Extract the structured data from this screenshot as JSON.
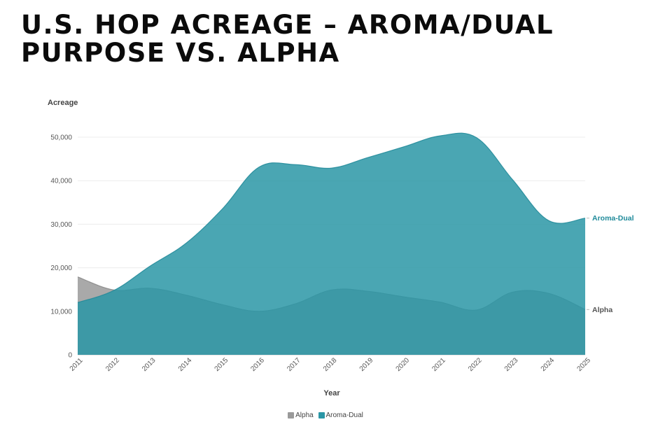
{
  "title": "U.S. HOP ACREAGE – AROMA/DUAL PURPOSE VS. ALPHA",
  "chart_data": {
    "type": "area",
    "title": "U.S. HOP ACREAGE – AROMA/DUAL PURPOSE VS. ALPHA",
    "xlabel": "Year",
    "ylabel": "Acreage",
    "x": [
      "2011",
      "2012",
      "2013",
      "2014",
      "2015",
      "2016",
      "2017",
      "2018",
      "2019",
      "2020",
      "2021",
      "2022",
      "2023",
      "2024",
      "2025"
    ],
    "yticks": [
      "0",
      "10,000",
      "20,000",
      "30,000",
      "40,000",
      "50,000"
    ],
    "ylim": [
      0,
      50000
    ],
    "grid": true,
    "legend_position": "bottom-center",
    "series": [
      {
        "name": "Alpha",
        "color": "#9a9a9a",
        "values": [
          17900,
          14900,
          15300,
          13700,
          11500,
          10000,
          11700,
          14900,
          14600,
          13300,
          12100,
          10300,
          14400,
          14100,
          10400
        ]
      },
      {
        "name": "Aroma-Dual",
        "color": "#2a96a6",
        "values": [
          12000,
          14800,
          20400,
          25700,
          33600,
          43100,
          43700,
          42900,
          45300,
          47800,
          50300,
          49900,
          40200,
          30800,
          31400
        ]
      }
    ],
    "end_labels": [
      "Aroma-Dual",
      "Alpha"
    ],
    "label_colors": {
      "Aroma-Dual": "#1f8a9a",
      "Alpha": "#555555"
    }
  }
}
